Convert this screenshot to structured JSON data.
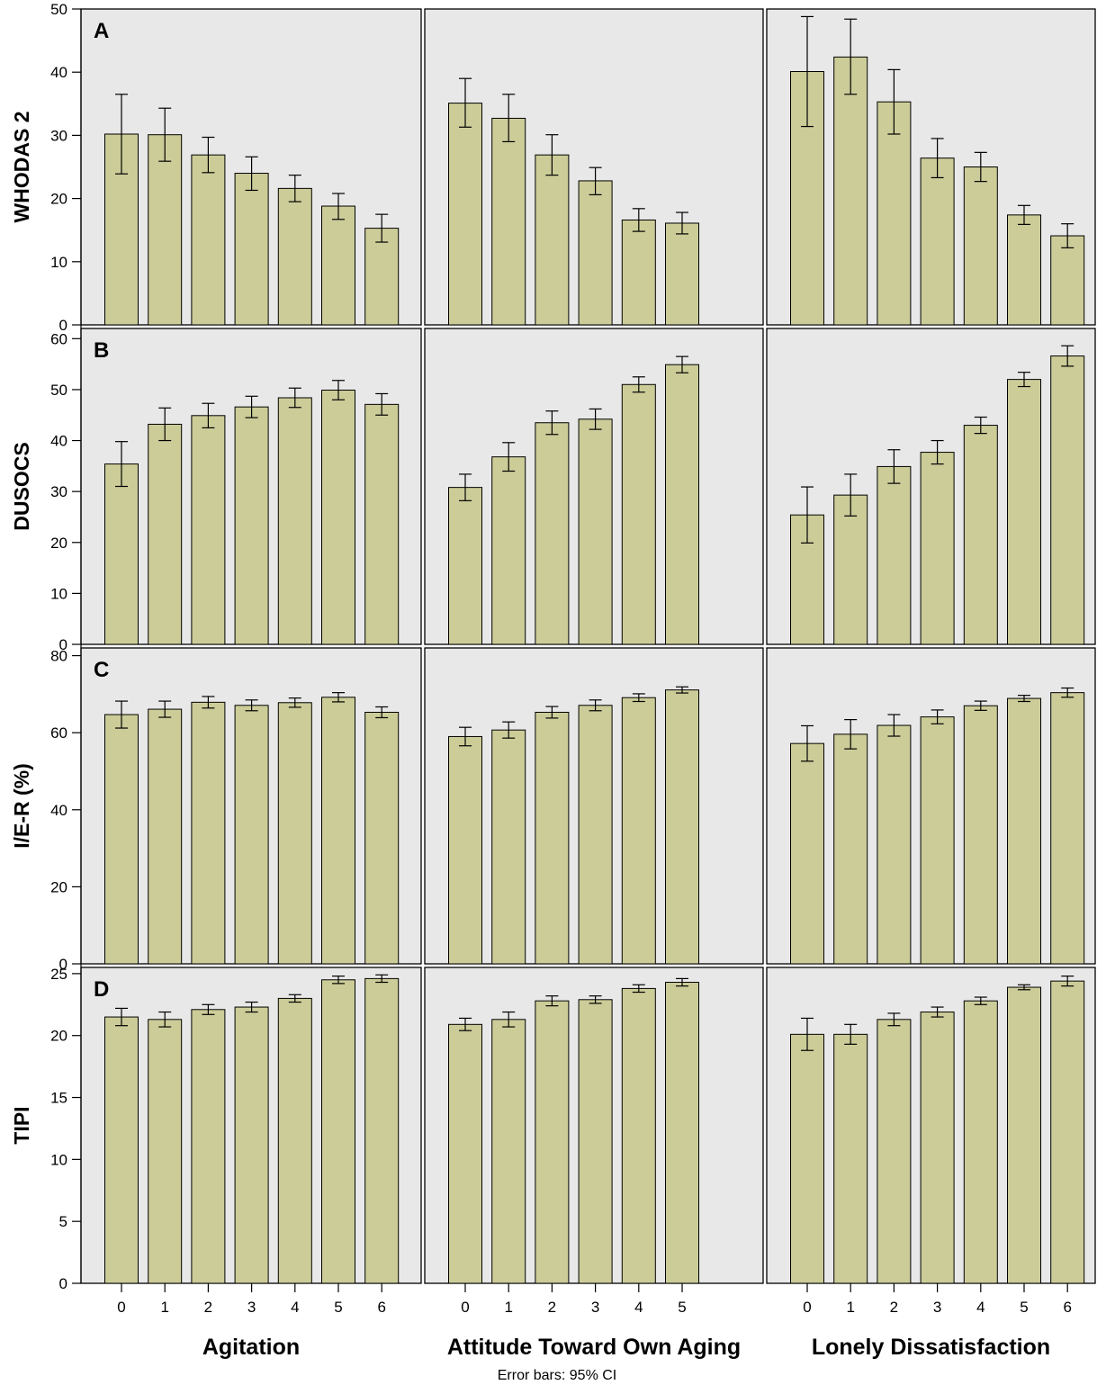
{
  "chart_data": {
    "type": "bar",
    "error_bars_note": "Error bars: 95% CI",
    "columns": [
      {
        "xlabel": "Agitation",
        "categories": [
          "0",
          "1",
          "2",
          "3",
          "4",
          "5",
          "6"
        ]
      },
      {
        "xlabel": "Attitude Toward Own Aging",
        "categories": [
          "0",
          "1",
          "2",
          "3",
          "4",
          "5"
        ]
      },
      {
        "xlabel": "Lonely Dissatisfaction",
        "categories": [
          "0",
          "1",
          "2",
          "3",
          "4",
          "5",
          "6"
        ]
      }
    ],
    "rows": [
      {
        "letter": "A",
        "ylabel": "WHODAS 2",
        "ylim": [
          0,
          50
        ],
        "yticks": [
          0,
          10,
          20,
          30,
          40,
          50
        ],
        "panels": [
          {
            "values": [
              30.2,
              30.1,
              26.9,
              24.0,
              21.6,
              18.8,
              15.3
            ],
            "ci_low": [
              23.9,
              25.9,
              24.1,
              21.3,
              19.5,
              16.7,
              13.1
            ],
            "ci_high": [
              36.5,
              34.3,
              29.7,
              26.6,
              23.7,
              20.8,
              17.5
            ]
          },
          {
            "values": [
              35.1,
              32.7,
              26.9,
              22.8,
              16.6,
              16.1
            ],
            "ci_low": [
              31.3,
              29.0,
              23.7,
              20.6,
              14.8,
              14.4
            ],
            "ci_high": [
              39.0,
              36.5,
              30.1,
              24.9,
              18.4,
              17.8
            ]
          },
          {
            "values": [
              40.1,
              42.4,
              35.3,
              26.4,
              25.0,
              17.4,
              14.1
            ],
            "ci_low": [
              31.4,
              36.5,
              30.2,
              23.3,
              22.7,
              15.9,
              12.2
            ],
            "ci_high": [
              48.8,
              48.4,
              40.4,
              29.5,
              27.3,
              18.9,
              16.0
            ]
          }
        ]
      },
      {
        "letter": "B",
        "ylabel": "DUSOCS",
        "ylim": [
          0,
          62
        ],
        "yticks": [
          0,
          10,
          20,
          30,
          40,
          50,
          60
        ],
        "panels": [
          {
            "values": [
              35.4,
              43.2,
              44.9,
              46.6,
              48.4,
              49.9,
              47.1
            ],
            "ci_low": [
              31.0,
              40.0,
              42.5,
              44.5,
              46.5,
              48.0,
              45.0
            ],
            "ci_high": [
              39.8,
              46.4,
              47.3,
              48.7,
              50.3,
              51.8,
              49.2
            ]
          },
          {
            "values": [
              30.8,
              36.8,
              43.5,
              44.2,
              51.0,
              54.9
            ],
            "ci_low": [
              28.2,
              34.0,
              41.2,
              42.2,
              49.5,
              53.3
            ],
            "ci_high": [
              33.4,
              39.6,
              45.8,
              46.2,
              52.5,
              56.5
            ]
          },
          {
            "values": [
              25.4,
              29.3,
              34.9,
              37.7,
              43.0,
              52.0,
              56.6
            ],
            "ci_low": [
              19.9,
              25.2,
              31.6,
              35.4,
              41.4,
              50.6,
              54.6
            ],
            "ci_high": [
              30.9,
              33.4,
              38.2,
              40.0,
              44.6,
              53.4,
              58.6
            ]
          }
        ]
      },
      {
        "letter": "C",
        "ylabel": "I/E-R (%)",
        "ylim": [
          0,
          82
        ],
        "yticks": [
          0,
          20,
          40,
          60,
          80
        ],
        "panels": [
          {
            "values": [
              64.7,
              66.1,
              67.9,
              67.1,
              67.8,
              69.2,
              65.3
            ],
            "ci_low": [
              61.2,
              64.0,
              66.4,
              65.7,
              66.6,
              68.0,
              63.9
            ],
            "ci_high": [
              68.2,
              68.2,
              69.4,
              68.5,
              69.0,
              70.4,
              66.7
            ]
          },
          {
            "values": [
              59.0,
              60.7,
              65.3,
              67.1,
              69.1,
              71.1
            ],
            "ci_low": [
              56.6,
              58.6,
              63.8,
              65.7,
              68.1,
              70.3
            ],
            "ci_high": [
              61.4,
              62.8,
              66.8,
              68.5,
              70.1,
              71.9
            ]
          },
          {
            "values": [
              57.2,
              59.6,
              61.9,
              64.1,
              67.0,
              68.9,
              70.4
            ],
            "ci_low": [
              52.6,
              55.8,
              59.1,
              62.3,
              65.8,
              68.1,
              69.2
            ],
            "ci_high": [
              61.8,
              63.4,
              64.7,
              65.9,
              68.2,
              69.7,
              71.6
            ]
          }
        ]
      },
      {
        "letter": "D",
        "ylabel": "TIPI",
        "ylim": [
          0,
          25.5
        ],
        "yticks": [
          0,
          5,
          10,
          15,
          20,
          25
        ],
        "panels": [
          {
            "values": [
              21.5,
              21.3,
              22.1,
              22.3,
              23.0,
              24.5,
              24.6
            ],
            "ci_low": [
              20.8,
              20.7,
              21.7,
              21.9,
              22.7,
              24.2,
              24.3
            ],
            "ci_high": [
              22.2,
              21.9,
              22.5,
              22.7,
              23.3,
              24.8,
              24.9
            ]
          },
          {
            "values": [
              20.9,
              21.3,
              22.8,
              22.9,
              23.8,
              24.3
            ],
            "ci_low": [
              20.4,
              20.7,
              22.4,
              22.6,
              23.5,
              24.0
            ],
            "ci_high": [
              21.4,
              21.9,
              23.2,
              23.2,
              24.1,
              24.6
            ]
          },
          {
            "values": [
              20.1,
              20.1,
              21.3,
              21.9,
              22.8,
              23.9,
              24.4
            ],
            "ci_low": [
              18.8,
              19.3,
              20.8,
              21.5,
              22.5,
              23.7,
              24.0
            ],
            "ci_high": [
              21.4,
              20.9,
              21.8,
              22.3,
              23.1,
              24.1,
              24.8
            ]
          }
        ]
      }
    ]
  }
}
